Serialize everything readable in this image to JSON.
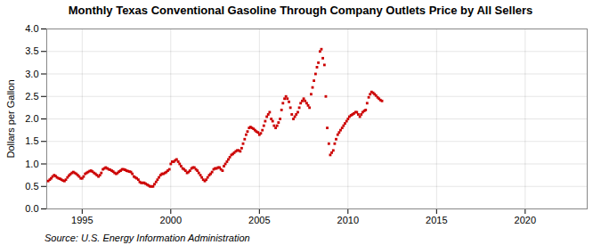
{
  "chart_data": {
    "type": "scatter",
    "title": "Monthly Texas Conventional Gasoline Through Company Outlets Price by All Sellers",
    "ylabel": "Dollars per Gallon",
    "caption": "Source: U.S. Energy Information Administration",
    "color": "#CC0000",
    "marker": "square",
    "grid": true,
    "xlim": [
      1993.0,
      2023.5
    ],
    "ylim": [
      0.0,
      4.0
    ],
    "xticks": [
      1995,
      2000,
      2005,
      2010,
      2015,
      2020
    ],
    "yticks": [
      {
        "value": 0.0,
        "label": "0.0"
      },
      0.5,
      {
        "value": 1.0,
        "label": "1.0"
      },
      1.5,
      {
        "value": 2.0,
        "label": "2.0"
      },
      2.5,
      {
        "value": 3.0,
        "label": "3.0"
      },
      3.5,
      {
        "value": 4.0,
        "label": "4.0"
      }
    ],
    "x": [
      1993.08,
      1993.17,
      1993.25,
      1993.33,
      1993.42,
      1993.5,
      1993.58,
      1993.67,
      1993.75,
      1993.83,
      1993.92,
      1994.0,
      1994.08,
      1994.17,
      1994.25,
      1994.33,
      1994.42,
      1994.5,
      1994.58,
      1994.67,
      1994.75,
      1994.83,
      1994.92,
      1995.0,
      1995.08,
      1995.17,
      1995.25,
      1995.33,
      1995.42,
      1995.5,
      1995.58,
      1995.67,
      1995.75,
      1995.83,
      1995.92,
      1996.0,
      1996.08,
      1996.17,
      1996.25,
      1996.33,
      1996.42,
      1996.5,
      1996.58,
      1996.67,
      1996.75,
      1996.83,
      1996.92,
      1997.0,
      1997.08,
      1997.17,
      1997.25,
      1997.33,
      1997.42,
      1997.5,
      1997.58,
      1997.67,
      1997.75,
      1997.83,
      1997.92,
      1998.0,
      1998.08,
      1998.17,
      1998.25,
      1998.33,
      1998.42,
      1998.5,
      1998.58,
      1998.67,
      1998.75,
      1998.83,
      1998.92,
      1999.0,
      1999.08,
      1999.17,
      1999.25,
      1999.33,
      1999.42,
      1999.5,
      1999.58,
      1999.67,
      1999.75,
      1999.83,
      1999.92,
      2000.0,
      2000.08,
      2000.17,
      2000.25,
      2000.33,
      2000.42,
      2000.5,
      2000.58,
      2000.67,
      2000.75,
      2000.83,
      2000.92,
      2001.0,
      2001.08,
      2001.17,
      2001.25,
      2001.33,
      2001.42,
      2001.5,
      2001.58,
      2001.67,
      2001.75,
      2001.83,
      2001.92,
      2002.0,
      2002.08,
      2002.17,
      2002.25,
      2002.33,
      2002.42,
      2002.5,
      2002.58,
      2002.67,
      2002.75,
      2002.83,
      2002.92,
      2003.0,
      2003.08,
      2003.17,
      2003.25,
      2003.33,
      2003.42,
      2003.5,
      2003.58,
      2003.67,
      2003.75,
      2003.83,
      2003.92,
      2004.0,
      2004.08,
      2004.17,
      2004.25,
      2004.33,
      2004.42,
      2004.5,
      2004.58,
      2004.67,
      2004.75,
      2004.83,
      2004.92,
      2005.0,
      2005.08,
      2005.17,
      2005.25,
      2005.33,
      2005.42,
      2005.5,
      2005.58,
      2005.67,
      2005.75,
      2005.83,
      2005.92,
      2006.0,
      2006.08,
      2006.17,
      2006.25,
      2006.33,
      2006.42,
      2006.5,
      2006.58,
      2006.67,
      2006.75,
      2006.83,
      2006.92,
      2007.0,
      2007.08,
      2007.17,
      2007.25,
      2007.33,
      2007.42,
      2007.5,
      2007.58,
      2007.67,
      2007.75,
      2007.83,
      2007.92,
      2008.0,
      2008.08,
      2008.17,
      2008.25,
      2008.33,
      2008.42,
      2008.5,
      2008.58,
      2008.67,
      2008.75,
      2008.83,
      2008.92,
      2009.0,
      2009.08,
      2009.17,
      2009.25,
      2009.33,
      2009.42,
      2009.5,
      2009.58,
      2009.67,
      2009.75,
      2009.83,
      2009.92,
      2010.0,
      2010.08,
      2010.17,
      2010.25,
      2010.33,
      2010.42,
      2010.5,
      2010.58,
      2010.67,
      2010.75,
      2010.83,
      2010.92,
      2011.0,
      2011.08,
      2011.17,
      2011.25,
      2011.33,
      2011.42,
      2011.5,
      2011.58,
      2011.67,
      2011.75,
      2011.83,
      2011.92
    ],
    "values": [
      0.62,
      0.65,
      0.68,
      0.72,
      0.75,
      0.73,
      0.7,
      0.68,
      0.67,
      0.65,
      0.63,
      0.62,
      0.65,
      0.7,
      0.74,
      0.77,
      0.8,
      0.82,
      0.8,
      0.78,
      0.75,
      0.72,
      0.68,
      0.68,
      0.72,
      0.78,
      0.8,
      0.82,
      0.84,
      0.85,
      0.83,
      0.8,
      0.78,
      0.75,
      0.72,
      0.75,
      0.8,
      0.88,
      0.9,
      0.92,
      0.9,
      0.88,
      0.87,
      0.85,
      0.83,
      0.8,
      0.78,
      0.8,
      0.83,
      0.85,
      0.88,
      0.88,
      0.87,
      0.85,
      0.84,
      0.83,
      0.82,
      0.78,
      0.72,
      0.7,
      0.68,
      0.65,
      0.6,
      0.58,
      0.58,
      0.58,
      0.56,
      0.54,
      0.52,
      0.5,
      0.5,
      0.5,
      0.55,
      0.6,
      0.65,
      0.7,
      0.75,
      0.78,
      0.78,
      0.8,
      0.82,
      0.85,
      0.88,
      1.0,
      1.05,
      1.05,
      1.08,
      1.1,
      1.05,
      1.0,
      0.95,
      0.9,
      0.88,
      0.85,
      0.8,
      0.82,
      0.85,
      0.9,
      0.92,
      0.92,
      0.88,
      0.85,
      0.8,
      0.75,
      0.7,
      0.65,
      0.62,
      0.65,
      0.7,
      0.75,
      0.78,
      0.82,
      0.88,
      0.9,
      0.9,
      0.92,
      0.92,
      0.88,
      0.85,
      0.95,
      1.0,
      1.05,
      1.1,
      1.15,
      1.2,
      1.22,
      1.25,
      1.28,
      1.3,
      1.3,
      1.28,
      1.35,
      1.45,
      1.55,
      1.65,
      1.72,
      1.8,
      1.82,
      1.8,
      1.78,
      1.75,
      1.72,
      1.7,
      1.65,
      1.68,
      1.75,
      1.85,
      1.95,
      2.05,
      2.1,
      2.15,
      2.0,
      1.95,
      1.85,
      1.8,
      1.85,
      1.92,
      2.0,
      2.2,
      2.35,
      2.45,
      2.5,
      2.45,
      2.38,
      2.25,
      2.1,
      2.0,
      2.05,
      2.1,
      2.15,
      2.25,
      2.35,
      2.4,
      2.45,
      2.4,
      2.35,
      2.3,
      2.25,
      2.55,
      2.7,
      2.85,
      3.0,
      3.15,
      3.25,
      3.5,
      3.55,
      3.35,
      3.2,
      2.5,
      1.8,
      1.45,
      1.2,
      1.25,
      1.3,
      1.45,
      1.55,
      1.65,
      1.7,
      1.75,
      1.8,
      1.85,
      1.9,
      1.95,
      2.0,
      2.05,
      2.08,
      2.1,
      2.12,
      2.15,
      2.15,
      2.1,
      2.05,
      2.1,
      2.15,
      2.18,
      2.2,
      2.35,
      2.48,
      2.55,
      2.6,
      2.58,
      2.55,
      2.52,
      2.48,
      2.45,
      2.42,
      2.4
    ]
  }
}
